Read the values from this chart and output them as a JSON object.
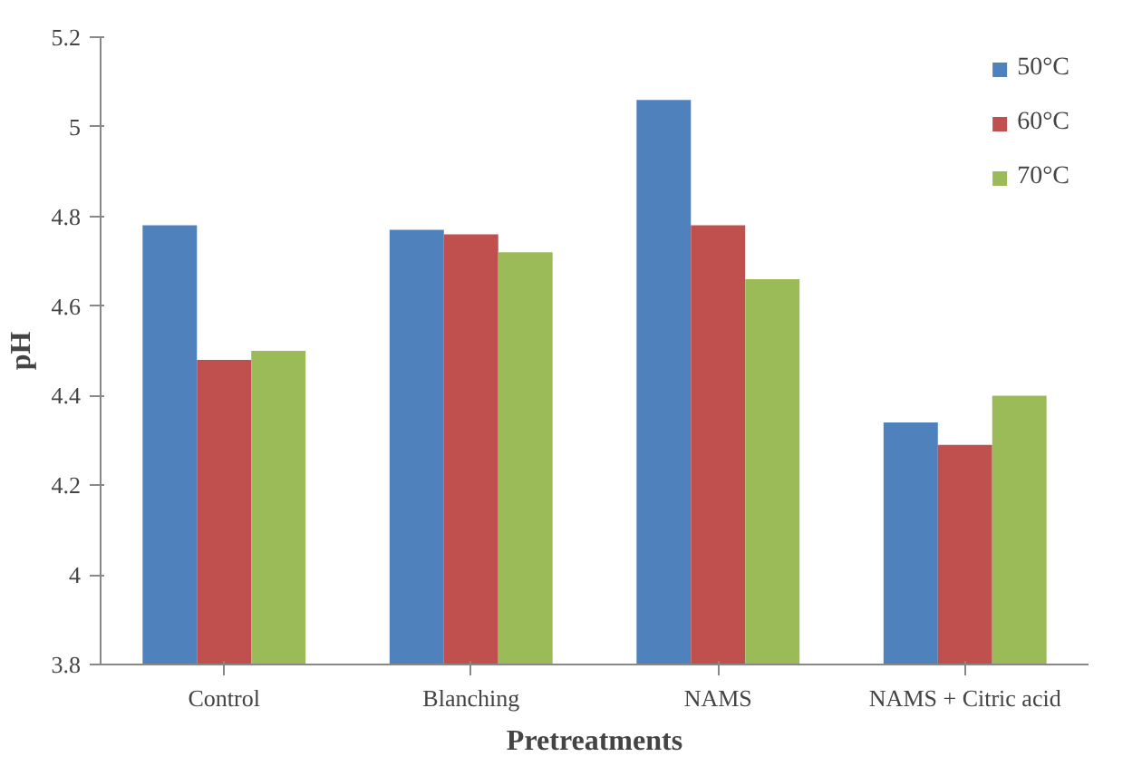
{
  "chart_data": {
    "type": "bar",
    "xlabel": "Pretreatments",
    "ylabel": "pH",
    "categories": [
      "Control",
      "Blanching",
      "NAMS",
      "NAMS + Citric acid"
    ],
    "series": [
      {
        "name": "50°C",
        "color": "#4f81bd",
        "values": [
          4.78,
          4.77,
          5.06,
          4.34
        ]
      },
      {
        "name": "60°C",
        "color": "#c0504d",
        "values": [
          4.48,
          4.76,
          4.78,
          4.29
        ]
      },
      {
        "name": "70°C",
        "color": "#9bbb59",
        "values": [
          4.5,
          4.72,
          4.66,
          4.4
        ]
      }
    ],
    "ylim": [
      3.8,
      5.2
    ],
    "yticks": [
      3.8,
      4,
      4.2,
      4.4,
      4.6,
      4.8,
      5,
      5.2
    ],
    "grid": false,
    "legend": "top right"
  }
}
